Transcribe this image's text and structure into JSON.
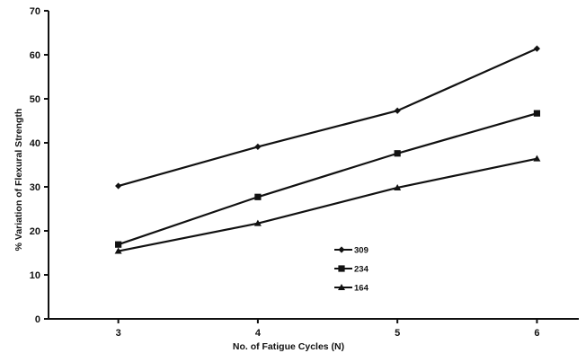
{
  "chart_data": {
    "type": "line",
    "title": "",
    "xlabel": "No. of Fatigue Cycles (N)",
    "ylabel": "% Variation of Flexural Strength",
    "x": [
      3,
      4,
      5,
      6
    ],
    "x_tick_labels": [
      "3",
      "4",
      "5",
      "6"
    ],
    "xlim": [
      2.5,
      6.3
    ],
    "ylim": [
      0,
      70
    ],
    "y_ticks": [
      0,
      10,
      20,
      30,
      40,
      50,
      60,
      70
    ],
    "y_tick_labels": [
      "0",
      "10",
      "20",
      "30",
      "40",
      "50",
      "60",
      "70"
    ],
    "grid": false,
    "legend_position": "lower-middle",
    "series": [
      {
        "name": "309",
        "marker": "diamond",
        "values": [
          30.2,
          39.1,
          47.3,
          61.4
        ]
      },
      {
        "name": "234",
        "marker": "square",
        "values": [
          16.9,
          27.7,
          37.6,
          46.7
        ]
      },
      {
        "name": "164",
        "marker": "triangle",
        "values": [
          15.4,
          21.7,
          29.8,
          36.4
        ]
      }
    ],
    "colors": {
      "line": "#111111",
      "axis": "#111111"
    }
  }
}
